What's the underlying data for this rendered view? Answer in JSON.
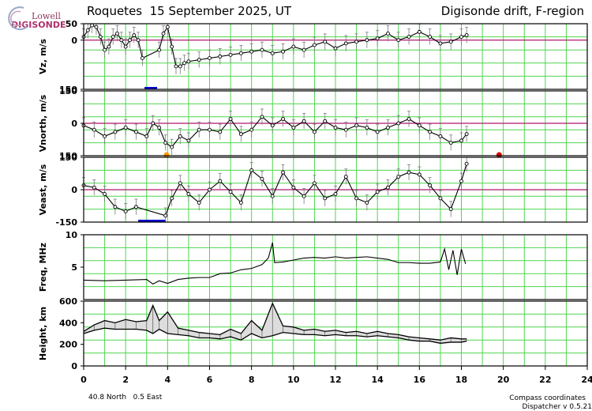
{
  "logo": {
    "org": "Lowell",
    "product": "DIGISONDE"
  },
  "header": {
    "left_title": "Roquetes  15 September 2025, UT",
    "right_title": "Digisonde drift, F-region"
  },
  "footer": {
    "location": "40.8 North   0.5 East",
    "coords": "Compass coordinates",
    "version": "Dispatcher v 0.5.21"
  },
  "colors": {
    "grid": "#4fd64f",
    "zero_line": "#b0186e",
    "trace": "#000000",
    "error_bar": "#7a7a7a",
    "gap_marker": "#0000cc",
    "marker_orange": "#ff9900",
    "marker_red": "#e00000"
  },
  "chart_data": {
    "type": "line",
    "xlabel": "",
    "xlim": [
      0,
      24
    ],
    "x_ticks": [
      "0",
      "2",
      "4",
      "6",
      "8",
      "10",
      "12",
      "14",
      "16",
      "18",
      "20",
      "22",
      "24"
    ],
    "panels": [
      {
        "id": "vz",
        "ylabel": "Vz, m/s",
        "ylim": [
          -150,
          50
        ],
        "y_ticks": [
          {
            "v": 50,
            "label": "50"
          },
          {
            "v": 0,
            "label": "0"
          },
          {
            "v": -150,
            "label": "150"
          }
        ],
        "zero_line": 0,
        "gaps": [
          [
            2.9,
            3.5
          ]
        ],
        "series": [
          {
            "error_bars": true,
            "x": [
              0,
              0.2,
              0.4,
              0.6,
              0.8,
              1.0,
              1.2,
              1.4,
              1.6,
              1.8,
              2.0,
              2.2,
              2.4,
              2.6,
              2.8,
              3.6,
              3.8,
              4.0,
              4.2,
              4.4,
              4.6,
              4.8,
              5.0,
              5.5,
              6.0,
              6.5,
              7.0,
              7.5,
              8.0,
              8.5,
              9.0,
              9.5,
              10.0,
              10.5,
              11.0,
              11.5,
              12.0,
              12.5,
              13.0,
              13.5,
              14.0,
              14.5,
              15.0,
              15.5,
              16.0,
              16.5,
              17.0,
              17.5,
              18.0,
              18.25
            ],
            "y": [
              10,
              30,
              45,
              40,
              10,
              -30,
              -20,
              10,
              20,
              0,
              -20,
              0,
              15,
              0,
              -55,
              -30,
              20,
              40,
              -20,
              -80,
              -80,
              -70,
              -65,
              -60,
              -55,
              -50,
              -45,
              -40,
              -35,
              -30,
              -40,
              -35,
              -20,
              -30,
              -15,
              -5,
              -25,
              -10,
              -5,
              0,
              5,
              20,
              0,
              10,
              25,
              10,
              -10,
              -5,
              10,
              15
            ]
          }
        ]
      },
      {
        "id": "vnorth",
        "ylabel": "Vnorth, m/s",
        "ylim": [
          -150,
          150
        ],
        "y_ticks": [
          {
            "v": 150,
            "label": "150"
          },
          {
            "v": 0,
            "label": "0"
          },
          {
            "v": -150,
            "label": "150"
          }
        ],
        "zero_line": 0,
        "markers": [
          {
            "x": 3.95,
            "y": -150,
            "color": "orange"
          },
          {
            "x": 19.8,
            "y": -150,
            "color": "red"
          }
        ],
        "series": [
          {
            "error_bars": true,
            "x": [
              0,
              0.5,
              1.0,
              1.5,
              2.0,
              2.5,
              3.0,
              3.3,
              3.6,
              3.9,
              4.2,
              4.6,
              5.0,
              5.5,
              6.0,
              6.5,
              7.0,
              7.5,
              8.0,
              8.5,
              9.0,
              9.5,
              10.0,
              10.5,
              11.0,
              11.5,
              12.0,
              12.5,
              13.0,
              13.5,
              14.0,
              14.5,
              15.0,
              15.5,
              16.0,
              16.5,
              17.0,
              17.5,
              18.0,
              18.25
            ],
            "y": [
              -10,
              -30,
              -60,
              -40,
              -20,
              -40,
              -60,
              0,
              -20,
              -90,
              -110,
              -60,
              -80,
              -30,
              -30,
              -40,
              20,
              -50,
              -30,
              30,
              -10,
              20,
              -20,
              10,
              -40,
              10,
              -20,
              -30,
              -10,
              -20,
              -40,
              -20,
              0,
              20,
              -10,
              -40,
              -60,
              -90,
              -80,
              -50
            ]
          }
        ]
      },
      {
        "id": "veast",
        "ylabel": "Veast, m/s",
        "ylim": [
          -150,
          150
        ],
        "y_ticks": [
          {
            "v": 150,
            "label": "150"
          },
          {
            "v": 0,
            "label": "0"
          },
          {
            "v": -150,
            "label": "-150"
          }
        ],
        "zero_line": 0,
        "gaps": [
          [
            2.6,
            3.9
          ]
        ],
        "series": [
          {
            "error_bars": true,
            "x": [
              0,
              0.5,
              1.0,
              1.5,
              2.0,
              2.5,
              3.9,
              4.2,
              4.6,
              5.0,
              5.5,
              6.0,
              6.5,
              7.0,
              7.5,
              8.0,
              8.5,
              9.0,
              9.5,
              10.0,
              10.5,
              11.0,
              11.5,
              12.0,
              12.5,
              13.0,
              13.5,
              14.0,
              14.5,
              15.0,
              15.5,
              16.0,
              16.5,
              17.0,
              17.5,
              18.0,
              18.25
            ],
            "y": [
              20,
              10,
              -20,
              -80,
              -100,
              -80,
              -120,
              -40,
              30,
              -20,
              -60,
              0,
              40,
              -10,
              -60,
              90,
              50,
              -30,
              80,
              10,
              -30,
              30,
              -40,
              -20,
              60,
              -40,
              -60,
              -10,
              10,
              60,
              80,
              70,
              20,
              -40,
              -90,
              40,
              120
            ]
          }
        ]
      },
      {
        "id": "freq",
        "ylabel": "Freq, MHz",
        "ylim": [
          0,
          10
        ],
        "y_ticks": [
          {
            "v": 10,
            "label": "10"
          },
          {
            "v": 5,
            "label": "5"
          }
        ],
        "series": [
          {
            "x": [
              0,
              1,
              2,
              3,
              3.3,
              3.6,
              4,
              4.5,
              5,
              5.5,
              6,
              6.5,
              7,
              7.5,
              8,
              8.5,
              8.8,
              9.0,
              9.1,
              9.5,
              10,
              10.5,
              11,
              11.5,
              12,
              12.5,
              13,
              13.5,
              14,
              14.5,
              15,
              15.5,
              16,
              16.5,
              17,
              17.2,
              17.4,
              17.6,
              17.8,
              18,
              18.2
            ],
            "y": [
              3.0,
              2.9,
              3.0,
              3.1,
              2.4,
              2.9,
              2.5,
              3.1,
              3.3,
              3.4,
              3.4,
              4.0,
              4.1,
              4.6,
              4.8,
              5.4,
              6.4,
              8.8,
              5.7,
              5.8,
              6.1,
              6.4,
              6.5,
              6.4,
              6.6,
              6.4,
              6.5,
              6.6,
              6.4,
              6.2,
              5.7,
              5.7,
              5.6,
              5.6,
              5.8,
              7.8,
              4.6,
              7.6,
              3.8,
              7.8,
              5.5
            ]
          }
        ]
      },
      {
        "id": "height",
        "ylabel": "Height, km",
        "ylim": [
          0,
          600
        ],
        "y_ticks": [
          {
            "v": 600,
            "label": "600"
          },
          {
            "v": 400,
            "label": "400"
          },
          {
            "v": 200,
            "label": "200"
          },
          {
            "v": 0,
            "label": "0"
          }
        ],
        "series": [
          {
            "name": "upper",
            "x": [
              0,
              0.5,
              1.0,
              1.5,
              2.0,
              2.5,
              3.0,
              3.3,
              3.6,
              4.0,
              4.5,
              5.0,
              5.5,
              6.0,
              6.5,
              7.0,
              7.5,
              8.0,
              8.5,
              9.0,
              9.5,
              10.0,
              10.5,
              11.0,
              11.5,
              12.0,
              12.5,
              13.0,
              13.5,
              14.0,
              14.5,
              15.0,
              15.5,
              16.0,
              16.5,
              17.0,
              17.5,
              18.0,
              18.25
            ],
            "y": [
              320,
              380,
              420,
              400,
              430,
              410,
              420,
              560,
              420,
              500,
              350,
              330,
              310,
              300,
              290,
              340,
              300,
              420,
              330,
              580,
              370,
              360,
              330,
              340,
              320,
              330,
              310,
              320,
              300,
              320,
              300,
              290,
              270,
              260,
              250,
              240,
              260,
              250,
              250
            ]
          },
          {
            "name": "lower",
            "x": [
              0,
              0.5,
              1.0,
              1.5,
              2.0,
              2.5,
              3.0,
              3.3,
              3.6,
              4.0,
              4.5,
              5.0,
              5.5,
              6.0,
              6.5,
              7.0,
              7.5,
              8.0,
              8.5,
              9.0,
              9.5,
              10.0,
              10.5,
              11.0,
              11.5,
              12.0,
              12.5,
              13.0,
              13.5,
              14.0,
              14.5,
              15.0,
              15.5,
              16.0,
              16.5,
              17.0,
              17.5,
              18.0,
              18.25
            ],
            "y": [
              300,
              330,
              350,
              340,
              340,
              340,
              330,
              300,
              340,
              300,
              290,
              280,
              260,
              260,
              250,
              270,
              240,
              300,
              260,
              280,
              310,
              300,
              290,
              290,
              280,
              290,
              280,
              280,
              270,
              280,
              270,
              260,
              240,
              230,
              230,
              210,
              220,
              220,
              230
            ]
          }
        ]
      }
    ]
  }
}
